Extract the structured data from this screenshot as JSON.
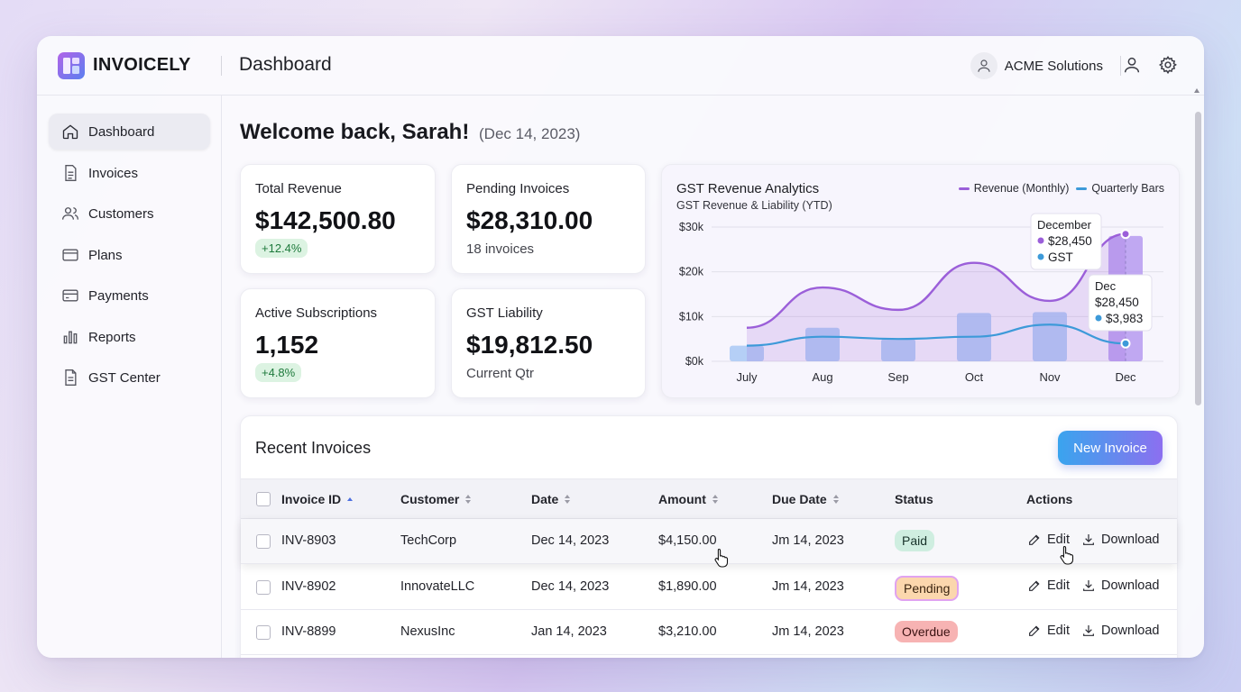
{
  "app": {
    "name": "INVOICELY",
    "page_title": "Dashboard"
  },
  "header": {
    "org_name": "ACME Solutions"
  },
  "sidebar": {
    "items": [
      {
        "label": "Dashboard",
        "icon": "home-icon",
        "active": true
      },
      {
        "label": "Invoices",
        "icon": "document-icon"
      },
      {
        "label": "Customers",
        "icon": "users-icon"
      },
      {
        "label": "Plans",
        "icon": "card-icon"
      },
      {
        "label": "Payments",
        "icon": "wallet-icon"
      },
      {
        "label": "Reports",
        "icon": "bar-chart-icon"
      },
      {
        "label": "GST Center",
        "icon": "file-icon"
      }
    ]
  },
  "welcome": {
    "greeting": "Welcome back, Sarah!",
    "date": "(Dec 14, 2023)"
  },
  "kpis": {
    "total_revenue": {
      "label": "Total Revenue",
      "value": "$142,500.80",
      "badge": "+12.4%"
    },
    "pending_invoices": {
      "label": "Pending Invoices",
      "value": "$28,310.00",
      "sub": "18 invoices"
    },
    "active_subscriptions": {
      "label": "Active Subscriptions",
      "value": "1,152",
      "badge": "+4.8%"
    },
    "gst_liability": {
      "label": "GST Liability",
      "value": "$19,812.50",
      "sub": "Current Qtr"
    }
  },
  "chart": {
    "title": "GST Revenue Analytics",
    "subtitle": "GST Revenue & Liability (YTD)",
    "legend": {
      "revenue": "Revenue (Monthly)",
      "quarterly": "Quarterly Bars"
    },
    "tooltip1": {
      "title": "December",
      "value": "$28,450",
      "label": "GST"
    },
    "tooltip2": {
      "title": "Dec",
      "value1": "$28,450",
      "value2": "$3,983"
    },
    "colors": {
      "revenue": "#9b5fd9",
      "gst": "#3d9ad9",
      "bars": "#a9c8f5",
      "dec_bar": "#b69af0"
    }
  },
  "chart_data": {
    "type": "line",
    "categories": [
      "July",
      "Aug",
      "Sep",
      "Oct",
      "Nov",
      "Dec"
    ],
    "y_ticks": [
      "$0k",
      "$10k",
      "$20k",
      "$30k"
    ],
    "ylim": [
      0,
      30000
    ],
    "series": [
      {
        "name": "Revenue (Monthly)",
        "type": "line",
        "values": [
          7500,
          16500,
          11500,
          22000,
          13500,
          28450
        ]
      },
      {
        "name": "Quarterly Bars",
        "type": "bar",
        "values": [
          3500,
          7500,
          5000,
          10800,
          11000,
          28000
        ]
      },
      {
        "name": "GST",
        "type": "line",
        "values": [
          3500,
          5500,
          5000,
          5500,
          8200,
          3983
        ]
      }
    ],
    "grid": true,
    "legend_position": "top-right"
  },
  "invoices": {
    "title": "Recent Invoices",
    "new_button": "New Invoice",
    "columns": [
      "Invoice ID",
      "Customer",
      "Date",
      "Amount",
      "Due Date",
      "Status",
      "Actions"
    ],
    "rows": [
      {
        "id": "INV-8903",
        "customer": "TechCorp",
        "date": "Dec 14, 2023",
        "amount": "$4,150.00",
        "due": "Jm 14, 2023",
        "status": "Paid",
        "status_kind": "paid"
      },
      {
        "id": "INV-8902",
        "customer": "InnovateLLC",
        "date": "Dec 14, 2023",
        "amount": "$1,890.00",
        "due": "Jm 14, 2023",
        "status": "Pending",
        "status_kind": "pending"
      },
      {
        "id": "INV-8899",
        "customer": "NexusInc",
        "date": "Jan 14, 2023",
        "amount": "$3,210.00",
        "due": "Jm 14, 2023",
        "status": "Overdue",
        "status_kind": "overdue"
      }
    ],
    "edit_label": "Edit",
    "download_label": "Download"
  }
}
